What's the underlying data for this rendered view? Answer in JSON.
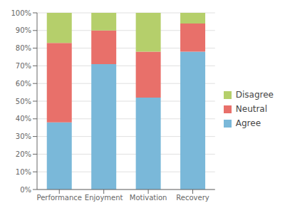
{
  "chart_data": {
    "type": "bar",
    "stacked": true,
    "categories": [
      "Performance",
      "Enjoyment",
      "Motivation",
      "Recovery"
    ],
    "series": [
      {
        "name": "Agree",
        "color": "#7ab8d9",
        "values": [
          38,
          71,
          52,
          78
        ]
      },
      {
        "name": "Neutral",
        "color": "#e8706a",
        "values": [
          45,
          19,
          26,
          16
        ]
      },
      {
        "name": "Disagree",
        "color": "#b5cf6b",
        "values": [
          17,
          10,
          22,
          6
        ]
      }
    ],
    "ylim": [
      0,
      100
    ],
    "yticks": [
      {
        "value": 0,
        "label": "0%"
      },
      {
        "value": 10,
        "label": "10%"
      },
      {
        "value": 20,
        "label": "20%"
      },
      {
        "value": 30,
        "label": "30%"
      },
      {
        "value": 40,
        "label": "40%"
      },
      {
        "value": 50,
        "label": "50%"
      },
      {
        "value": 60,
        "label": "60%"
      },
      {
        "value": 70,
        "label": "70%"
      },
      {
        "value": 80,
        "label": "80%"
      },
      {
        "value": 90,
        "label": "90%"
      },
      {
        "value": 100,
        "label": "100%"
      }
    ],
    "grid": true,
    "legend": "right"
  }
}
